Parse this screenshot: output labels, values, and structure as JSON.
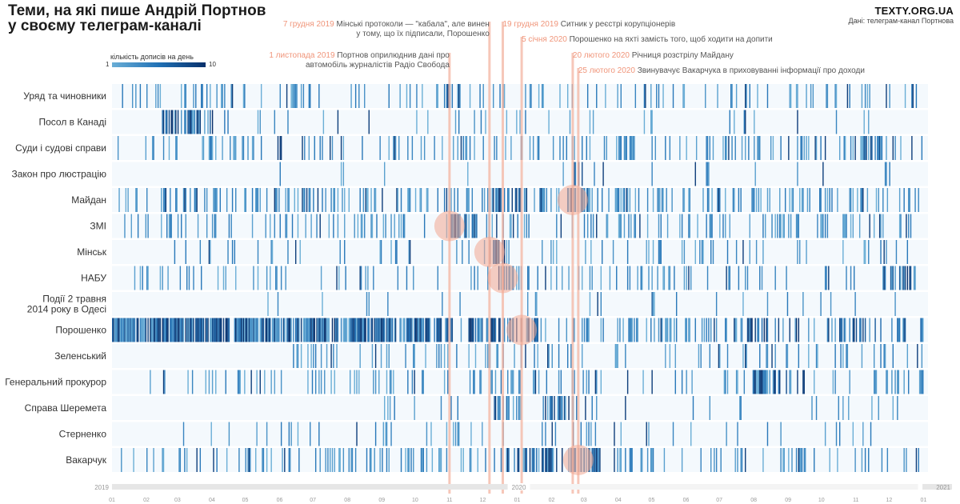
{
  "header": {
    "title_line1": "Теми, на які пише Андрій Портнов",
    "title_line2": "у своєму телеграм-каналі",
    "brand": "TEXTY.ORG.UA",
    "source": "Дані: телеграм-канал Портнова"
  },
  "legend": {
    "title": "кількість дописів на день",
    "min": "1",
    "max": "10",
    "colors": [
      "#6aaed6",
      "#2171b5",
      "#08306b"
    ]
  },
  "colors": {
    "row_background": "#f4f9fd",
    "annotation_line": "#f4b5a2",
    "annotation_circle": "#f2a891",
    "annotation_date": "#f0957a",
    "light_post": "#6aaed6",
    "dark_post": "#08306b"
  },
  "chart_data": {
    "type": "heatmap",
    "title": "Теми, на які пише Андрій Портнов у своєму телеграм-каналі",
    "x_range": [
      "2019-01-01",
      "2021-01-05"
    ],
    "value_range": [
      1,
      10
    ],
    "value_label": "кількість дописів на день",
    "years": [
      {
        "label": "2019",
        "date": "2019-01-01"
      },
      {
        "label": "2020",
        "date": "2020-01-01"
      },
      {
        "label": "2021",
        "date": "2021-01-01"
      }
    ],
    "months": [
      {
        "label": "01",
        "date": "2019-01-01"
      },
      {
        "label": "02",
        "date": "2019-02-01"
      },
      {
        "label": "03",
        "date": "2019-03-01"
      },
      {
        "label": "04",
        "date": "2019-04-01"
      },
      {
        "label": "05",
        "date": "2019-05-01"
      },
      {
        "label": "06",
        "date": "2019-06-01"
      },
      {
        "label": "07",
        "date": "2019-07-01"
      },
      {
        "label": "08",
        "date": "2019-08-01"
      },
      {
        "label": "09",
        "date": "2019-09-01"
      },
      {
        "label": "10",
        "date": "2019-10-01"
      },
      {
        "label": "11",
        "date": "2019-11-01"
      },
      {
        "label": "12",
        "date": "2019-12-01"
      },
      {
        "label": "01",
        "date": "2020-01-01"
      },
      {
        "label": "02",
        "date": "2020-02-01"
      },
      {
        "label": "03",
        "date": "2020-03-01"
      },
      {
        "label": "04",
        "date": "2020-04-01"
      },
      {
        "label": "05",
        "date": "2020-05-01"
      },
      {
        "label": "06",
        "date": "2020-06-01"
      },
      {
        "label": "07",
        "date": "2020-07-01"
      },
      {
        "label": "08",
        "date": "2020-08-01"
      },
      {
        "label": "09",
        "date": "2020-09-01"
      },
      {
        "label": "10",
        "date": "2020-10-01"
      },
      {
        "label": "11",
        "date": "2020-11-01"
      },
      {
        "label": "12",
        "date": "2020-12-01"
      },
      {
        "label": "01",
        "date": "2021-01-01"
      }
    ],
    "categories": [
      {
        "label": [
          "Уряд та чиновники"
        ],
        "start": "2019-01-03",
        "end": "2020-12-31",
        "density": 0.18,
        "seed": 11,
        "bursts": []
      },
      {
        "label": [
          "Посол в Канаді"
        ],
        "start": "2019-02-10",
        "end": "2020-11-20",
        "density": 0.06,
        "seed": 23,
        "bursts": [
          [
            "2019-02-15",
            "2019-04-01",
            0.5
          ]
        ]
      },
      {
        "label": [
          "Суди і судові справи"
        ],
        "start": "2019-01-03",
        "end": "2020-12-31",
        "density": 0.2,
        "seed": 37,
        "bursts": [
          [
            "2020-11-05",
            "2020-11-25",
            0.6
          ]
        ]
      },
      {
        "label": [
          "Закон про люстрацію"
        ],
        "start": "2019-06-01",
        "end": "2020-12-20",
        "density": 0.04,
        "seed": 41,
        "bursts": [
          [
            "2020-02-20",
            "2020-02-28",
            0.6
          ]
        ]
      },
      {
        "label": [
          "Майдан"
        ],
        "start": "2019-01-03",
        "end": "2020-12-31",
        "density": 0.26,
        "seed": 53,
        "bursts": [
          [
            "2019-12-10",
            "2020-01-05",
            0.6
          ],
          [
            "2020-02-15",
            "2020-03-05",
            0.7
          ]
        ]
      },
      {
        "label": [
          "ЗМІ"
        ],
        "start": "2019-01-10",
        "end": "2020-12-31",
        "density": 0.2,
        "seed": 67,
        "bursts": [
          [
            "2019-11-01",
            "2019-11-25",
            0.75
          ]
        ]
      },
      {
        "label": [
          "Мінськ"
        ],
        "start": "2019-02-01",
        "end": "2020-12-20",
        "density": 0.1,
        "seed": 71,
        "bursts": [
          [
            "2019-12-07",
            "2019-12-20",
            0.75
          ]
        ]
      },
      {
        "label": [
          "НАБУ"
        ],
        "start": "2019-01-20",
        "end": "2020-12-31",
        "density": 0.13,
        "seed": 83,
        "bursts": [
          [
            "2019-12-15",
            "2020-01-05",
            0.7
          ],
          [
            "2020-11-25",
            "2020-12-25",
            0.5
          ]
        ]
      },
      {
        "label": [
          "Події 2 травня",
          "2014 року в Одесі"
        ],
        "start": "2019-05-01",
        "end": "2020-12-31",
        "density": 0.03,
        "seed": 97,
        "bursts": [
          [
            "2020-05-01",
            "2020-05-04",
            0.7
          ]
        ]
      },
      {
        "label": [
          "Порошенко"
        ],
        "start": "2019-01-01",
        "end": "2020-12-31",
        "density": 0.3,
        "seed": 101,
        "bursts": [
          [
            "2019-01-01",
            "2019-10-15",
            0.82
          ],
          [
            "2019-10-15",
            "2020-01-20",
            0.55
          ],
          [
            "2020-07-15",
            "2020-12-31",
            0.38
          ]
        ]
      },
      {
        "label": [
          "Зеленський"
        ],
        "start": "2019-06-01",
        "end": "2020-12-31",
        "density": 0.15,
        "seed": 113,
        "bursts": []
      },
      {
        "label": [
          "Генеральний прокурор"
        ],
        "start": "2019-02-01",
        "end": "2020-12-31",
        "density": 0.14,
        "seed": 127,
        "bursts": [
          [
            "2020-08-01",
            "2020-09-15",
            0.4
          ]
        ]
      },
      {
        "label": [
          "Справа Шеремета"
        ],
        "start": "2019-09-01",
        "end": "2020-12-31",
        "density": 0.07,
        "seed": 131,
        "bursts": [
          [
            "2019-12-10",
            "2020-01-05",
            0.45
          ],
          [
            "2020-01-25",
            "2020-02-20",
            0.5
          ]
        ]
      },
      {
        "label": [
          "Стерненко"
        ],
        "start": "2019-03-01",
        "end": "2020-12-31",
        "density": 0.08,
        "seed": 149,
        "bursts": []
      },
      {
        "label": [
          "Вакарчук"
        ],
        "start": "2019-01-03",
        "end": "2020-12-31",
        "density": 0.2,
        "seed": 157,
        "bursts": [
          [
            "2019-12-20",
            "2020-02-10",
            0.5
          ],
          [
            "2020-02-20",
            "2020-03-15",
            0.85
          ]
        ]
      }
    ],
    "annotations": [
      {
        "date": "2019-11-01",
        "date_text": "1 листопада 2019",
        "text": [
          "Портнов оприлюднив дані про",
          "автомобіль журналістів Радіо Свобода"
        ],
        "row": 5,
        "x_text_anchor": "end",
        "text_row": 4
      },
      {
        "date": "2019-12-07",
        "date_text": "7 грудня 2019",
        "text": [
          "Мінські протоколи — \"кабала\", але винен",
          "у тому, що їх підписали, Порошенко"
        ],
        "row": 6,
        "x_text_anchor": "end",
        "text_row": 0
      },
      {
        "date": "2019-12-19",
        "date_text": "19 грудня 2019",
        "text": [
          "Ситник у реєстрі корупціонерів"
        ],
        "row": 7,
        "x_text_anchor": "start",
        "text_row": 0
      },
      {
        "date": "2020-01-05",
        "date_text": "5 січня 2020",
        "text": [
          "Порошенко на яхті замість того, щоб ходити на допити"
        ],
        "row": 9,
        "x_text_anchor": "start",
        "text_row": 2
      },
      {
        "date": "2020-02-20",
        "date_text": "20 лютого 2020",
        "text": [
          "Річниця розстрілу Майдану"
        ],
        "row": 4,
        "x_text_anchor": "start",
        "text_row": 4
      },
      {
        "date": "2020-02-25",
        "date_text": "25 лютого 2020",
        "text": [
          "Звинувачує Вакарчука в приховуванні інформації про доходи"
        ],
        "row": 14,
        "x_text_anchor": "start",
        "text_row": 6
      }
    ]
  }
}
